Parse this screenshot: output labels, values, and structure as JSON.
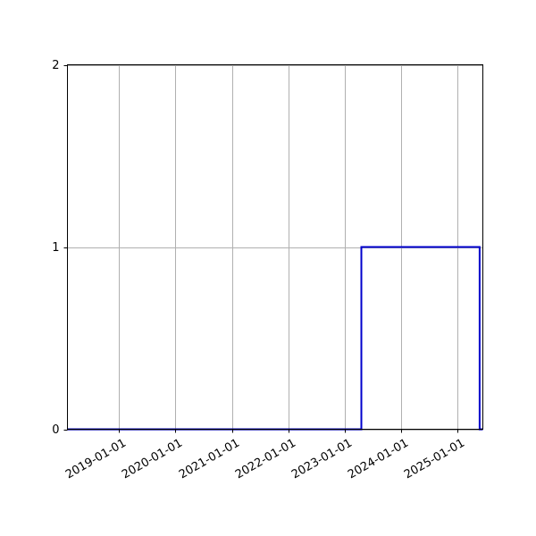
{
  "chart_data": {
    "type": "line",
    "step": true,
    "title": "",
    "xlabel": "",
    "ylabel": "",
    "grid": true,
    "xlim": [
      "2018-02-01",
      "2025-06-15"
    ],
    "ylim": [
      0,
      2
    ],
    "x_ticks": [
      "2019-01-01",
      "2020-01-01",
      "2021-01-01",
      "2022-01-01",
      "2023-01-01",
      "2024-01-01",
      "2025-01-01"
    ],
    "y_ticks": [
      0,
      1,
      2
    ],
    "series": [
      {
        "color": "#0000cc",
        "points": [
          {
            "x": "2018-02-01",
            "y": 0
          },
          {
            "x": "2023-04-20",
            "y": 0
          },
          {
            "x": "2023-04-20",
            "y": 1
          },
          {
            "x": "2025-05-25",
            "y": 1
          },
          {
            "x": "2025-05-25",
            "y": 0
          },
          {
            "x": "2025-06-15",
            "y": 0
          }
        ]
      }
    ]
  }
}
